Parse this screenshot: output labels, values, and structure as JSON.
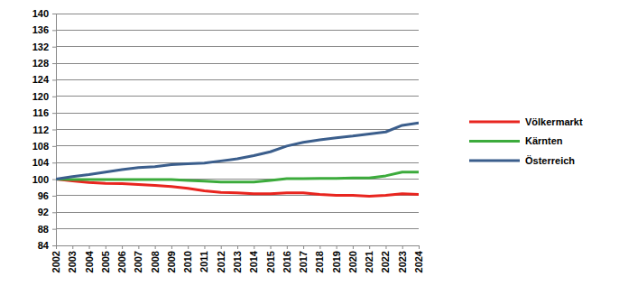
{
  "chart_data": {
    "type": "line",
    "x": [
      2002,
      2003,
      2004,
      2005,
      2006,
      2007,
      2008,
      2009,
      2010,
      2011,
      2012,
      2013,
      2014,
      2015,
      2016,
      2017,
      2018,
      2019,
      2020,
      2021,
      2022,
      2023,
      2024
    ],
    "xlim": [
      2002,
      2024
    ],
    "xticks": [
      2002,
      2003,
      2004,
      2005,
      2006,
      2007,
      2008,
      2009,
      2010,
      2011,
      2012,
      2013,
      2014,
      2015,
      2016,
      2017,
      2018,
      2019,
      2020,
      2021,
      2022,
      2023,
      2024
    ],
    "ylim": [
      84,
      140
    ],
    "yticks": [
      84,
      88,
      92,
      96,
      100,
      104,
      108,
      112,
      116,
      120,
      124,
      128,
      132,
      136,
      140
    ],
    "grid": true,
    "legend": "right",
    "series": [
      {
        "name": "Völkermarkt",
        "color": "#e8251f",
        "values": [
          100,
          99.6,
          99.2,
          99.0,
          98.9,
          98.7,
          98.5,
          98.2,
          97.8,
          97.2,
          96.8,
          96.7,
          96.5,
          96.5,
          96.7,
          96.7,
          96.3,
          96.1,
          96.1,
          95.9,
          96.1,
          96.5,
          96.3
        ]
      },
      {
        "name": "Kärnten",
        "color": "#3cab3c",
        "values": [
          100,
          99.9,
          99.9,
          99.9,
          99.9,
          99.9,
          99.9,
          99.9,
          99.7,
          99.5,
          99.3,
          99.3,
          99.3,
          99.7,
          100.1,
          100.1,
          100.2,
          100.2,
          100.3,
          100.3,
          100.8,
          101.7,
          101.7
        ]
      },
      {
        "name": "Österreich",
        "color": "#3b5e8c",
        "values": [
          100,
          100.6,
          101.1,
          101.7,
          102.3,
          102.8,
          103.0,
          103.5,
          103.7,
          103.9,
          104.4,
          104.9,
          105.7,
          106.6,
          108.0,
          108.9,
          109.5,
          110.0,
          110.4,
          110.9,
          111.4,
          113.0,
          113.6
        ]
      }
    ]
  }
}
